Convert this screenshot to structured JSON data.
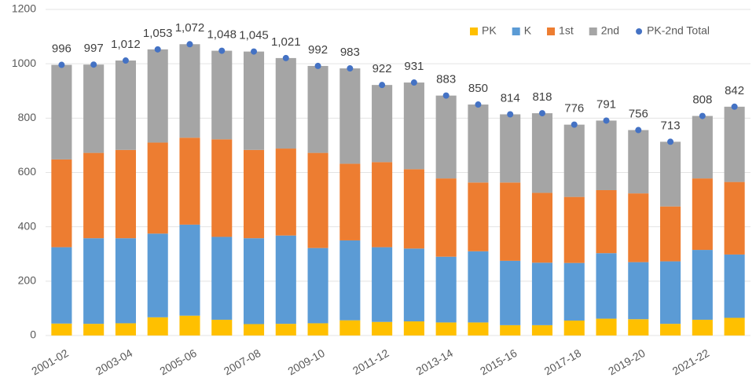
{
  "chart_data": {
    "type": "bar",
    "stacked": true,
    "categories": [
      "2001-02",
      null,
      "2003-04",
      null,
      "2005-06",
      null,
      "2007-08",
      null,
      "2009-10",
      null,
      "2011-12",
      null,
      "2013-14",
      null,
      "2015-16",
      null,
      "2017-18",
      null,
      "2019-20",
      null,
      "2021-22",
      null
    ],
    "series": [
      {
        "name": "PK",
        "color": "#ffc000",
        "values": [
          44,
          43,
          45,
          67,
          73,
          58,
          42,
          43,
          45,
          56,
          50,
          52,
          48,
          48,
          38,
          38,
          55,
          62,
          60,
          43,
          58,
          65
        ]
      },
      {
        "name": "K",
        "color": "#5b9bd5",
        "values": [
          281,
          315,
          313,
          308,
          335,
          305,
          316,
          325,
          277,
          294,
          275,
          268,
          242,
          262,
          237,
          230,
          212,
          241,
          210,
          230,
          257,
          233
        ]
      },
      {
        "name": "1st",
        "color": "#ed7d31",
        "values": [
          323,
          314,
          325,
          335,
          320,
          359,
          325,
          320,
          350,
          282,
          313,
          292,
          288,
          253,
          288,
          257,
          243,
          232,
          253,
          202,
          263,
          267
        ]
      },
      {
        "name": "2nd",
        "color": "#a5a5a5",
        "values": [
          348,
          325,
          329,
          343,
          344,
          326,
          362,
          333,
          320,
          351,
          284,
          319,
          305,
          287,
          251,
          293,
          266,
          256,
          233,
          238,
          230,
          277
        ]
      },
      {
        "name": "PK-2nd Total",
        "color": "#4472c4",
        "type": "scatter",
        "values": [
          996,
          997,
          1012,
          1053,
          1072,
          1048,
          1045,
          1021,
          992,
          983,
          922,
          931,
          883,
          850,
          814,
          818,
          776,
          791,
          756,
          713,
          808,
          842
        ],
        "value_labels": [
          "996",
          "997",
          "1,012",
          "1,053",
          "1,072",
          "1,048",
          "1,045",
          "1,021",
          "992",
          "983",
          "922",
          "931",
          "883",
          "850",
          "814",
          "818",
          "776",
          "791",
          "756",
          "713",
          "808",
          "842"
        ]
      }
    ],
    "ylim": [
      0,
      1200
    ],
    "yticks": [
      0,
      200,
      400,
      600,
      800,
      1000,
      1200
    ],
    "grid": true,
    "legend": "top-right"
  }
}
